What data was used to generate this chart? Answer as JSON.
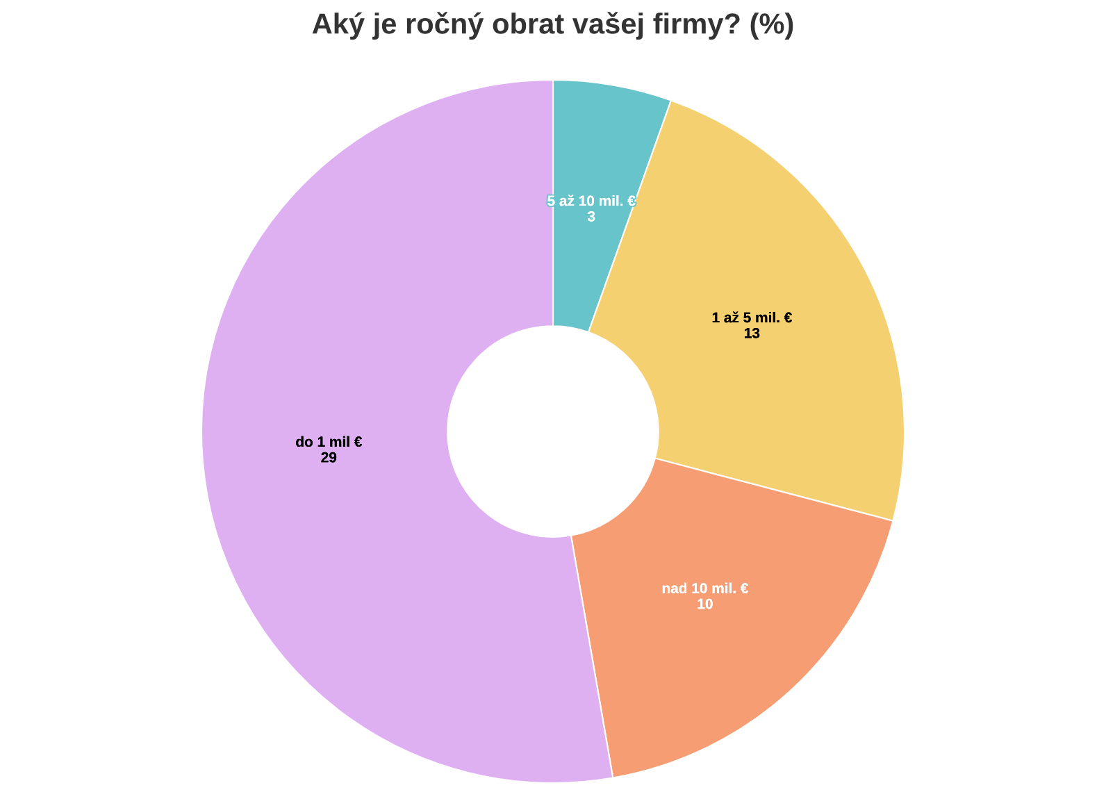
{
  "chart_data": {
    "type": "donut",
    "title": "Aký je ročný obrat vašej firmy? (%)",
    "categories": [
      "5 až 10 mil. €",
      "1 až 5 mil. €",
      "nad 10 mil. €",
      "do 1 mil €"
    ],
    "values": [
      3,
      13,
      10,
      29
    ],
    "colors": [
      "#67c4cb",
      "#f5d070",
      "#f79d74",
      "#deb0f2"
    ],
    "data_labels": true
  }
}
